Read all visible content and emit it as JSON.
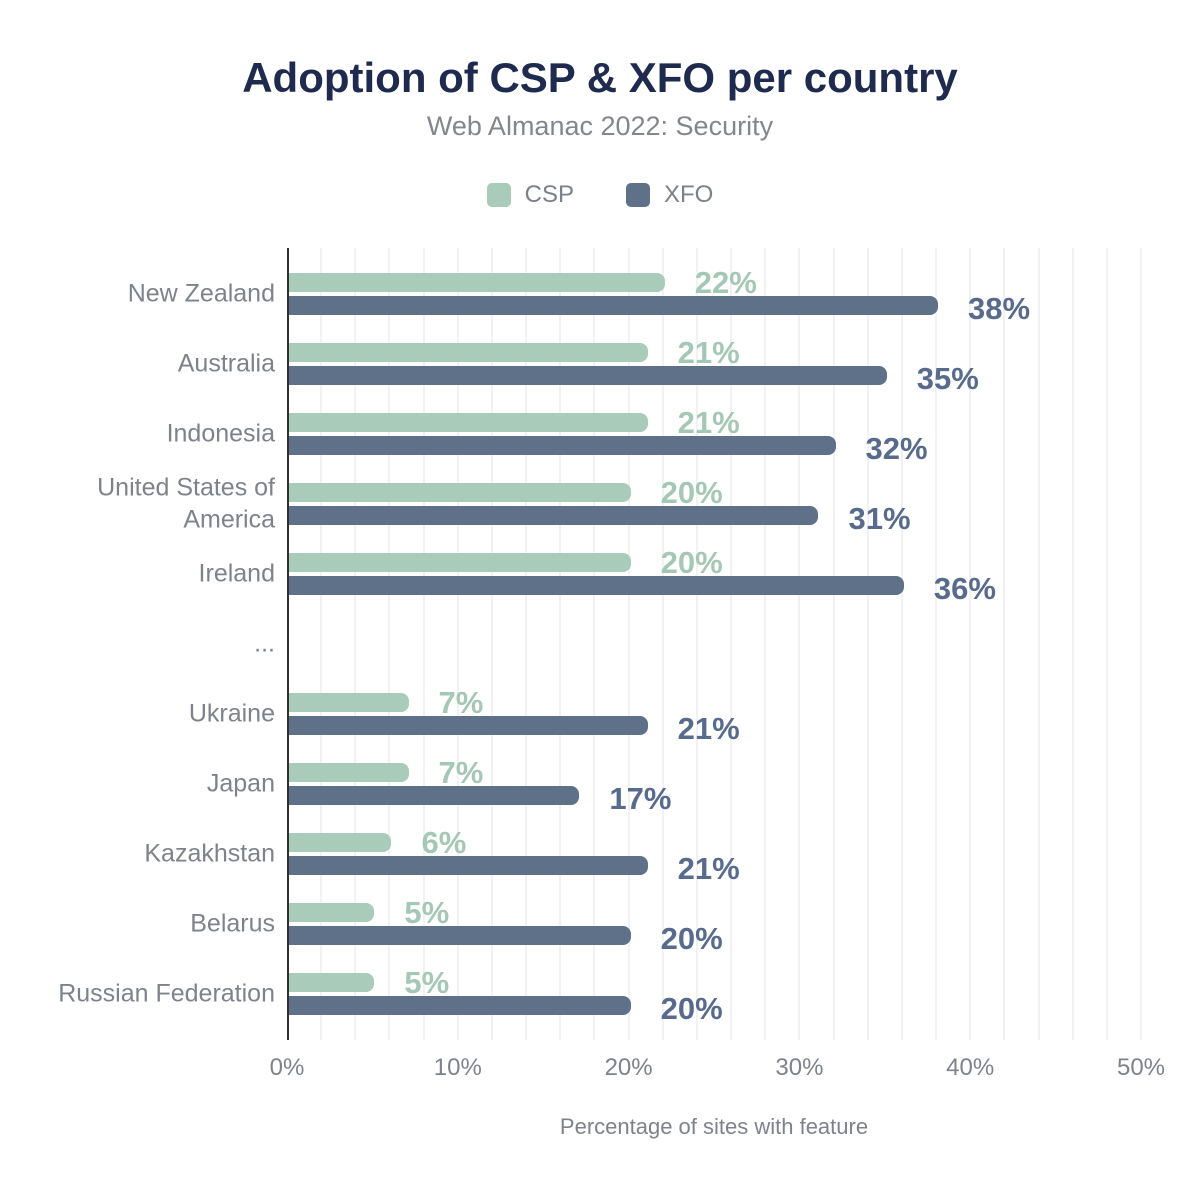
{
  "header": {
    "title": "Adoption of CSP & XFO per country",
    "subtitle": "Web Almanac 2022: Security"
  },
  "legend": {
    "items": [
      {
        "label": "CSP",
        "color": "#a8cbba"
      },
      {
        "label": "XFO",
        "color": "#5f7089"
      }
    ]
  },
  "colors": {
    "title_navy": "#1e2a4e",
    "csp_green": "#a8cbba",
    "csp_label_green": "#a5c8b6",
    "xfo_blue": "#5f7089",
    "xfo_label_blue": "#586b8d",
    "axis_text_gray": "#7d828c"
  },
  "chart_data": {
    "type": "bar",
    "orientation": "horizontal",
    "title": "Adoption of CSP & XFO per country",
    "subtitle": "Web Almanac 2022: Security",
    "xlabel": "Percentage of sites with feature",
    "ylabel": "",
    "xlim": [
      0,
      50
    ],
    "grid_step": 2,
    "grid_on": true,
    "legend_position": "top",
    "value_suffix": "%",
    "categories": [
      "New Zealand",
      "Australia",
      "Indonesia",
      "United States of America",
      "Ireland",
      "...",
      "Ukraine",
      "Japan",
      "Kazakhstan",
      "Belarus",
      "Russian Federation"
    ],
    "series": [
      {
        "name": "CSP",
        "color": "#a8cbba",
        "label_color": "#a5c8b6",
        "values": [
          22,
          21,
          21,
          20,
          20,
          null,
          7,
          7,
          6,
          5,
          5
        ]
      },
      {
        "name": "XFO",
        "color": "#5f7089",
        "label_color": "#586b8d",
        "values": [
          38,
          35,
          32,
          31,
          36,
          null,
          21,
          17,
          21,
          20,
          20
        ]
      }
    ],
    "x_ticks": [
      "0%",
      "10%",
      "20%",
      "30%",
      "40%",
      "50%"
    ]
  }
}
